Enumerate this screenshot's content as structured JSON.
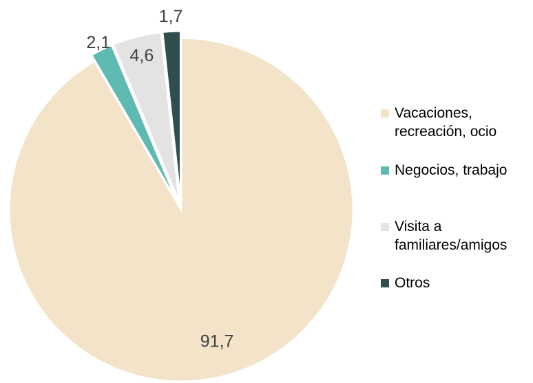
{
  "chart_data": {
    "type": "pie",
    "categories": [
      "Vacaciones, recreación, ocio",
      "Negocios, trabajo",
      "Visita a familiares/amigos",
      "Otros"
    ],
    "values": [
      91.7,
      2.1,
      4.6,
      1.7
    ],
    "value_labels": [
      "91,7",
      "2,1",
      "4,6",
      "1,7"
    ],
    "colors": [
      "#f2e3c9",
      "#5fbab1",
      "#e3e3e3",
      "#2f4f4d"
    ],
    "legend": "right"
  }
}
